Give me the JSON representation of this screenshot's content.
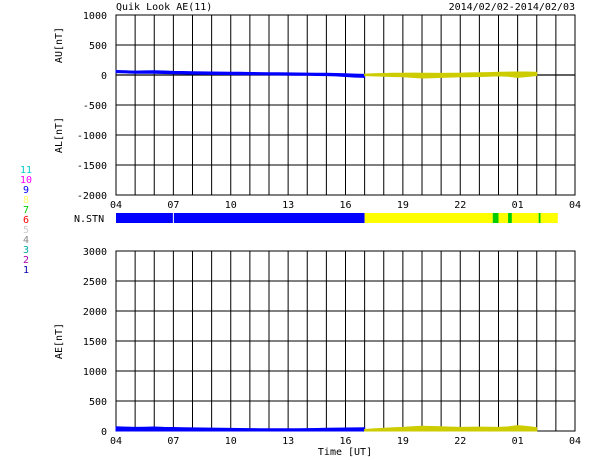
{
  "header": {
    "title": "Quik Look AE(11)",
    "date_range": "2014/02/02-2014/02/03"
  },
  "station_legend": {
    "numbers": [
      "11",
      "10",
      "9",
      "8",
      "7",
      "6",
      "5",
      "4",
      "3",
      "2",
      "1"
    ],
    "colors": [
      "#00cccc",
      "#ff00ff",
      "#0000ff",
      "#ffff66",
      "#00cc00",
      "#ff0000",
      "#cccccc",
      "#888888",
      "#00aaaa",
      "#aa00aa",
      "#0000aa"
    ]
  },
  "nstn_label": "N.STN",
  "xlabel": "Time [UT]",
  "chart_data": [
    {
      "type": "line",
      "panel": "AU/AL",
      "ylabel_upper": "AU[nT]",
      "ylabel_lower": "AL[nT]",
      "ylim": [
        -2000,
        1000
      ],
      "yticks": [
        1000,
        500,
        0,
        -500,
        -1000,
        -1500,
        -2000
      ],
      "xlim": [
        4,
        28
      ],
      "xticks": [
        "04",
        "07",
        "10",
        "13",
        "16",
        "19",
        "22",
        "01",
        "04"
      ],
      "grid": true,
      "series": [
        {
          "color": "#0000ff",
          "x": [
            4.0,
            4.5,
            5.0,
            5.5,
            6.0,
            6.5,
            7.0,
            7.5,
            8.0,
            8.5,
            9.0,
            9.5,
            10.0,
            10.5,
            11.0,
            11.5,
            12.0,
            12.5,
            13.0,
            13.5,
            14.0,
            14.5,
            15.0,
            15.5,
            16.0,
            16.5,
            17.0
          ],
          "upper": [
            75,
            70,
            65,
            68,
            72,
            66,
            60,
            58,
            55,
            52,
            50,
            48,
            46,
            45,
            42,
            40,
            38,
            36,
            35,
            34,
            32,
            30,
            28,
            25,
            20,
            15,
            10
          ],
          "lower": [
            40,
            35,
            30,
            32,
            28,
            25,
            20,
            18,
            15,
            12,
            10,
            8,
            6,
            5,
            4,
            3,
            2,
            0,
            -2,
            -4,
            -5,
            -8,
            -10,
            -15,
            -25,
            -35,
            -40
          ]
        },
        {
          "color": "#cccc00",
          "x": [
            17.0,
            17.5,
            18.0,
            18.5,
            19.0,
            19.5,
            20.0,
            20.5,
            21.0,
            21.5,
            22.0,
            22.5,
            23.0,
            23.5,
            24.0,
            24.5,
            25.0,
            25.5,
            26.0
          ],
          "upper": [
            15,
            20,
            25,
            28,
            30,
            32,
            30,
            28,
            26,
            28,
            30,
            35,
            38,
            40,
            45,
            48,
            50,
            50,
            45
          ],
          "lower": [
            -10,
            -15,
            -20,
            -25,
            -30,
            -40,
            -50,
            -45,
            -40,
            -35,
            -30,
            -28,
            -25,
            -20,
            -15,
            -20,
            -40,
            -25,
            -10
          ]
        }
      ]
    },
    {
      "type": "bar",
      "panel": "N.STN",
      "segments": [
        {
          "from": 4.0,
          "to": 7.0,
          "color": "#0000ff"
        },
        {
          "from": 7.0,
          "to": 17.0,
          "color": "#0000ff"
        },
        {
          "from": 17.0,
          "to": 23.7,
          "color": "#ffff00"
        },
        {
          "from": 23.7,
          "to": 24.0,
          "color": "#00cc00"
        },
        {
          "from": 24.0,
          "to": 24.5,
          "color": "#ffff00"
        },
        {
          "from": 24.5,
          "to": 24.7,
          "color": "#00cc00"
        },
        {
          "from": 24.7,
          "to": 26.1,
          "color": "#ffff00"
        },
        {
          "from": 26.1,
          "to": 26.2,
          "color": "#00cc00"
        },
        {
          "from": 26.2,
          "to": 27.1,
          "color": "#ffff00"
        }
      ]
    },
    {
      "type": "area",
      "panel": "AE",
      "ylabel": "AE[nT]",
      "ylim": [
        0,
        3000
      ],
      "yticks": [
        3000,
        2500,
        2000,
        1500,
        1000,
        500,
        0
      ],
      "xlim": [
        4,
        28
      ],
      "xticks": [
        "04",
        "07",
        "10",
        "13",
        "16",
        "19",
        "22",
        "01",
        "04"
      ],
      "grid": true,
      "series": [
        {
          "color": "#0000ff",
          "x": [
            4.0,
            4.5,
            5.0,
            5.5,
            6.0,
            6.5,
            7.0,
            7.5,
            8.0,
            8.5,
            9.0,
            9.5,
            10.0,
            10.5,
            11.0,
            11.5,
            12.0,
            12.5,
            13.0,
            13.5,
            14.0,
            14.5,
            15.0,
            15.5,
            16.0,
            16.5,
            17.0
          ],
          "values": [
            70,
            65,
            60,
            62,
            66,
            60,
            58,
            55,
            52,
            50,
            48,
            45,
            44,
            42,
            40,
            38,
            36,
            36,
            37,
            38,
            40,
            42,
            45,
            48,
            50,
            52,
            55
          ]
        },
        {
          "color": "#cccc00",
          "x": [
            17.0,
            17.5,
            18.0,
            18.5,
            19.0,
            19.5,
            20.0,
            20.5,
            21.0,
            21.5,
            22.0,
            22.5,
            23.0,
            23.5,
            24.0,
            24.5,
            25.0,
            25.5,
            26.0
          ],
          "values": [
            25,
            35,
            45,
            55,
            60,
            70,
            80,
            75,
            70,
            65,
            60,
            62,
            65,
            62,
            60,
            68,
            90,
            75,
            55
          ]
        }
      ]
    }
  ]
}
